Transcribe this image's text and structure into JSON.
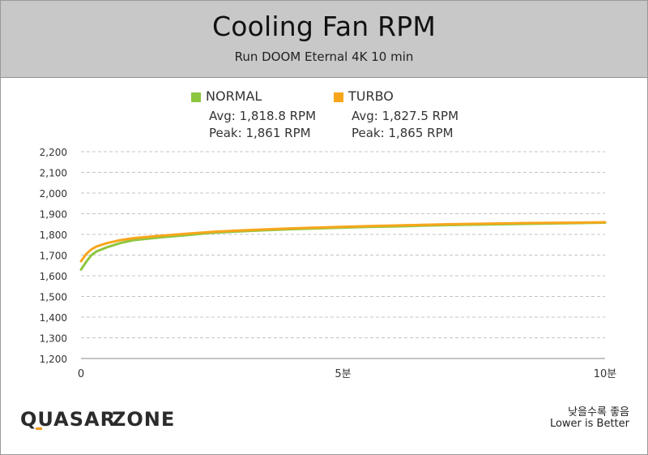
{
  "chart_data": {
    "type": "line",
    "title": "Cooling Fan RPM",
    "subtitle": "Run DOOM Eternal 4K 10 min",
    "x_unit": "분",
    "xlim": [
      0,
      10
    ],
    "x_ticks": [
      "0",
      "5분",
      "10분"
    ],
    "ylim": [
      1200,
      2200
    ],
    "y_ticks": [
      "1,200",
      "1,300",
      "1,400",
      "1,500",
      "1,600",
      "1,700",
      "1,800",
      "1,900",
      "2,000",
      "2,100",
      "2,200"
    ],
    "grid": true,
    "legend_position": "top-center",
    "series": [
      {
        "name": "NORMAL",
        "color": "#8dc63f",
        "avg_label": "Avg: 1,818.8 RPM",
        "peak_label": "Peak: 1,861 RPM",
        "x": [
          0,
          0.1,
          0.2,
          0.3,
          0.5,
          0.75,
          1.0,
          1.5,
          2.0,
          2.5,
          3.0,
          3.5,
          4.0,
          4.5,
          5.0,
          5.5,
          6.0,
          6.5,
          7.0,
          7.5,
          8.0,
          8.5,
          9.0,
          9.5,
          10.0
        ],
        "values": [
          1630,
          1668,
          1700,
          1718,
          1738,
          1758,
          1772,
          1785,
          1796,
          1808,
          1814,
          1820,
          1825,
          1829,
          1833,
          1836,
          1839,
          1842,
          1845,
          1847,
          1849,
          1851,
          1853,
          1855,
          1857
        ]
      },
      {
        "name": "TURBO",
        "color": "#f7a61c",
        "avg_label": "Avg: 1,827.5 RPM",
        "peak_label": "Peak: 1,865 RPM",
        "x": [
          0,
          0.1,
          0.2,
          0.3,
          0.5,
          0.75,
          1.0,
          1.5,
          2.0,
          2.5,
          3.0,
          3.5,
          4.0,
          4.5,
          5.0,
          5.5,
          6.0,
          6.5,
          7.0,
          7.5,
          8.0,
          8.5,
          9.0,
          9.5,
          10.0
        ],
        "values": [
          1670,
          1705,
          1728,
          1742,
          1758,
          1772,
          1782,
          1793,
          1803,
          1812,
          1819,
          1824,
          1829,
          1833,
          1837,
          1840,
          1843,
          1846,
          1849,
          1851,
          1853,
          1855,
          1856,
          1857,
          1859
        ]
      }
    ]
  },
  "footer": {
    "logo_left": "QUASAR",
    "logo_right": "ZONE",
    "note_ko": "낮을수록 좋음",
    "note_en": "Lower is Better"
  }
}
